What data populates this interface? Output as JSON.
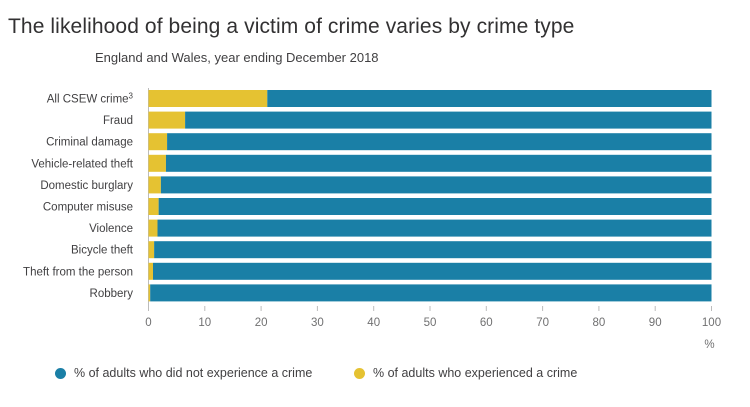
{
  "chart_data": {
    "type": "bar",
    "orientation": "horizontal",
    "stacked": true,
    "title": "The likelihood of being a victim of crime varies by crime type",
    "subtitle": "England and Wales, year ending December 2018",
    "categories": [
      "All CSEW crime",
      "Fraud",
      "Criminal damage",
      "Vehicle-related theft",
      "Domestic burglary",
      "Computer misuse",
      "Violence",
      "Bicycle theft",
      "Theft from the person",
      "Robbery"
    ],
    "category_superscripts": [
      "3",
      "",
      "",
      "",
      "",
      "",
      "",
      "",
      "",
      ""
    ],
    "series": [
      {
        "name": "% of adults who experienced a crime",
        "color": "#e5c232",
        "values": [
          21.1,
          6.5,
          3.3,
          3.1,
          2.2,
          1.8,
          1.6,
          1.0,
          0.8,
          0.3
        ]
      },
      {
        "name": "% of adults who did not experience a crime",
        "color": "#1a7fa6",
        "values": [
          78.9,
          93.5,
          96.7,
          96.9,
          97.8,
          98.2,
          98.4,
          99.0,
          99.2,
          99.7
        ]
      }
    ],
    "xlim": [
      0,
      100
    ],
    "xticks": [
      "0",
      "10",
      "20",
      "30",
      "40",
      "50",
      "60",
      "70",
      "80",
      "90",
      "100"
    ],
    "xunit": "%",
    "grid": false,
    "legend_position": "bottom"
  }
}
